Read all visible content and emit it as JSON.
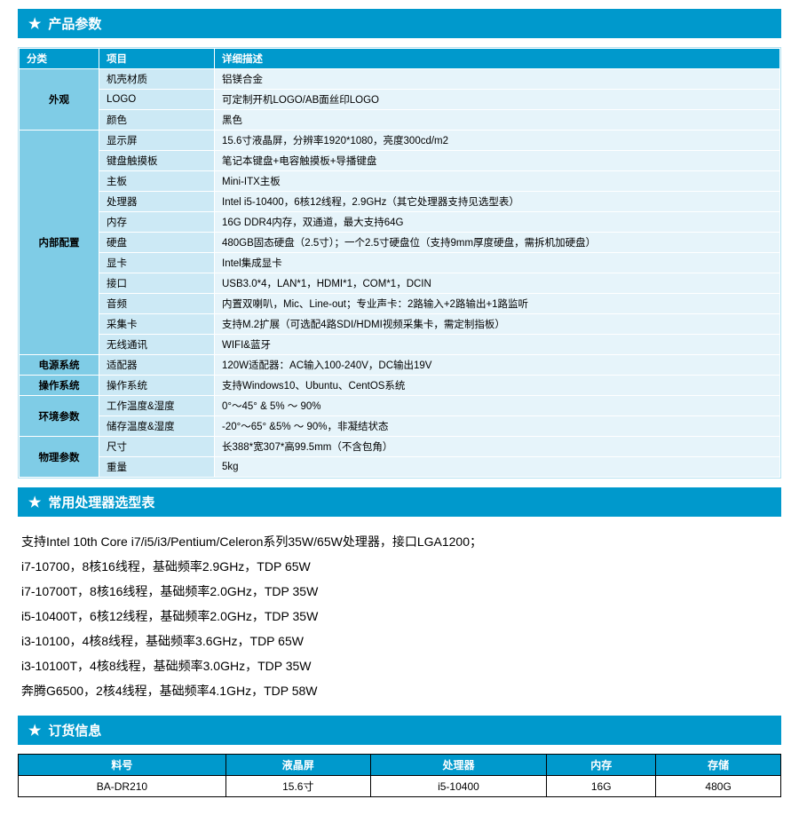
{
  "colors": {
    "header_bg": "#0099cc",
    "header_fg": "#ffffff",
    "cat_bg": "#7fcce6",
    "item_bg": "#cce9f5",
    "desc_bg": "#e6f4fa",
    "border": "#ffffff",
    "order_border": "#000000",
    "page_bg": "#ffffff"
  },
  "sections": {
    "spec": {
      "title": "产品参数"
    },
    "proc": {
      "title": "常用处理器选型表"
    },
    "order": {
      "title": "订货信息"
    }
  },
  "spec_table": {
    "headers": {
      "cat": "分类",
      "item": "项目",
      "desc": "详细描述"
    },
    "groups": [
      {
        "cat": "外观",
        "rows": [
          {
            "item": "机壳材质",
            "desc": "铝镁合金"
          },
          {
            "item": "LOGO",
            "desc": "可定制开机LOGO/AB面丝印LOGO"
          },
          {
            "item": "颜色",
            "desc": "黑色"
          }
        ]
      },
      {
        "cat": "内部配置",
        "rows": [
          {
            "item": "显示屏",
            "desc": "15.6寸液晶屏，分辨率1920*1080，亮度300cd/m2"
          },
          {
            "item": "键盘触摸板",
            "desc": "笔记本键盘+电容触摸板+导播键盘"
          },
          {
            "item": "主板",
            "desc": "Mini-ITX主板"
          },
          {
            "item": "处理器",
            "desc": "Intel i5-10400，6核12线程，2.9GHz（其它处理器支持见选型表）"
          },
          {
            "item": "内存",
            "desc": "16G DDR4内存，双通道，最大支持64G"
          },
          {
            "item": "硬盘",
            "desc": "480GB固态硬盘（2.5寸）；一个2.5寸硬盘位（支持9mm厚度硬盘，需拆机加硬盘）"
          },
          {
            "item": "显卡",
            "desc": "Intel集成显卡"
          },
          {
            "item": "接口",
            "desc": "USB3.0*4，LAN*1，HDMI*1，COM*1，DCIN"
          },
          {
            "item": "音频",
            "desc": "内置双喇叭，Mic、Line-out；专业声卡：2路输入+2路输出+1路监听"
          },
          {
            "item": "采集卡",
            "desc": "支持M.2扩展（可选配4路SDI/HDMI视频采集卡，需定制指板）"
          },
          {
            "item": "无线通讯",
            "desc": "WIFI&蓝牙"
          }
        ]
      },
      {
        "cat": "电源系统",
        "rows": [
          {
            "item": "适配器",
            "desc": "120W适配器：AC输入100-240V，DC输出19V"
          }
        ]
      },
      {
        "cat": "操作系统",
        "rows": [
          {
            "item": "操作系统",
            "desc": "支持Windows10、Ubuntu、CentOS系统"
          }
        ]
      },
      {
        "cat": "环境参数",
        "rows": [
          {
            "item": "工作温度&湿度",
            "desc": "0°～45° & 5% ～ 90%"
          },
          {
            "item": "储存温度&湿度",
            "desc": "-20°～65° &5% ～ 90%，非凝结状态"
          }
        ]
      },
      {
        "cat": "物理参数",
        "rows": [
          {
            "item": "尺寸",
            "desc": "长388*宽307*高99.5mm（不含包角）"
          },
          {
            "item": "重量",
            "desc": "5kg"
          }
        ]
      }
    ]
  },
  "proc_list": [
    "支持Intel 10th Core i7/i5/i3/Pentium/Celeron系列35W/65W处理器，接口LGA1200；",
    "i7-10700，8核16线程，基础频率2.9GHz，TDP 65W",
    "i7-10700T，8核16线程，基础频率2.0GHz，TDP 35W",
    "i5-10400T，6核12线程，基础频率2.0GHz，TDP 35W",
    "i3-10100，4核8线程，基础频率3.6GHz，TDP 65W",
    "i3-10100T，4核8线程，基础频率3.0GHz，TDP 35W",
    "奔腾G6500，2核4线程，基础频率4.1GHz，TDP 58W"
  ],
  "order_table": {
    "columns": [
      "料号",
      "液晶屏",
      "处理器",
      "内存",
      "存储"
    ],
    "rows": [
      [
        "BA-DR210",
        "15.6寸",
        "i5-10400",
        "16G",
        "480G"
      ]
    ]
  }
}
